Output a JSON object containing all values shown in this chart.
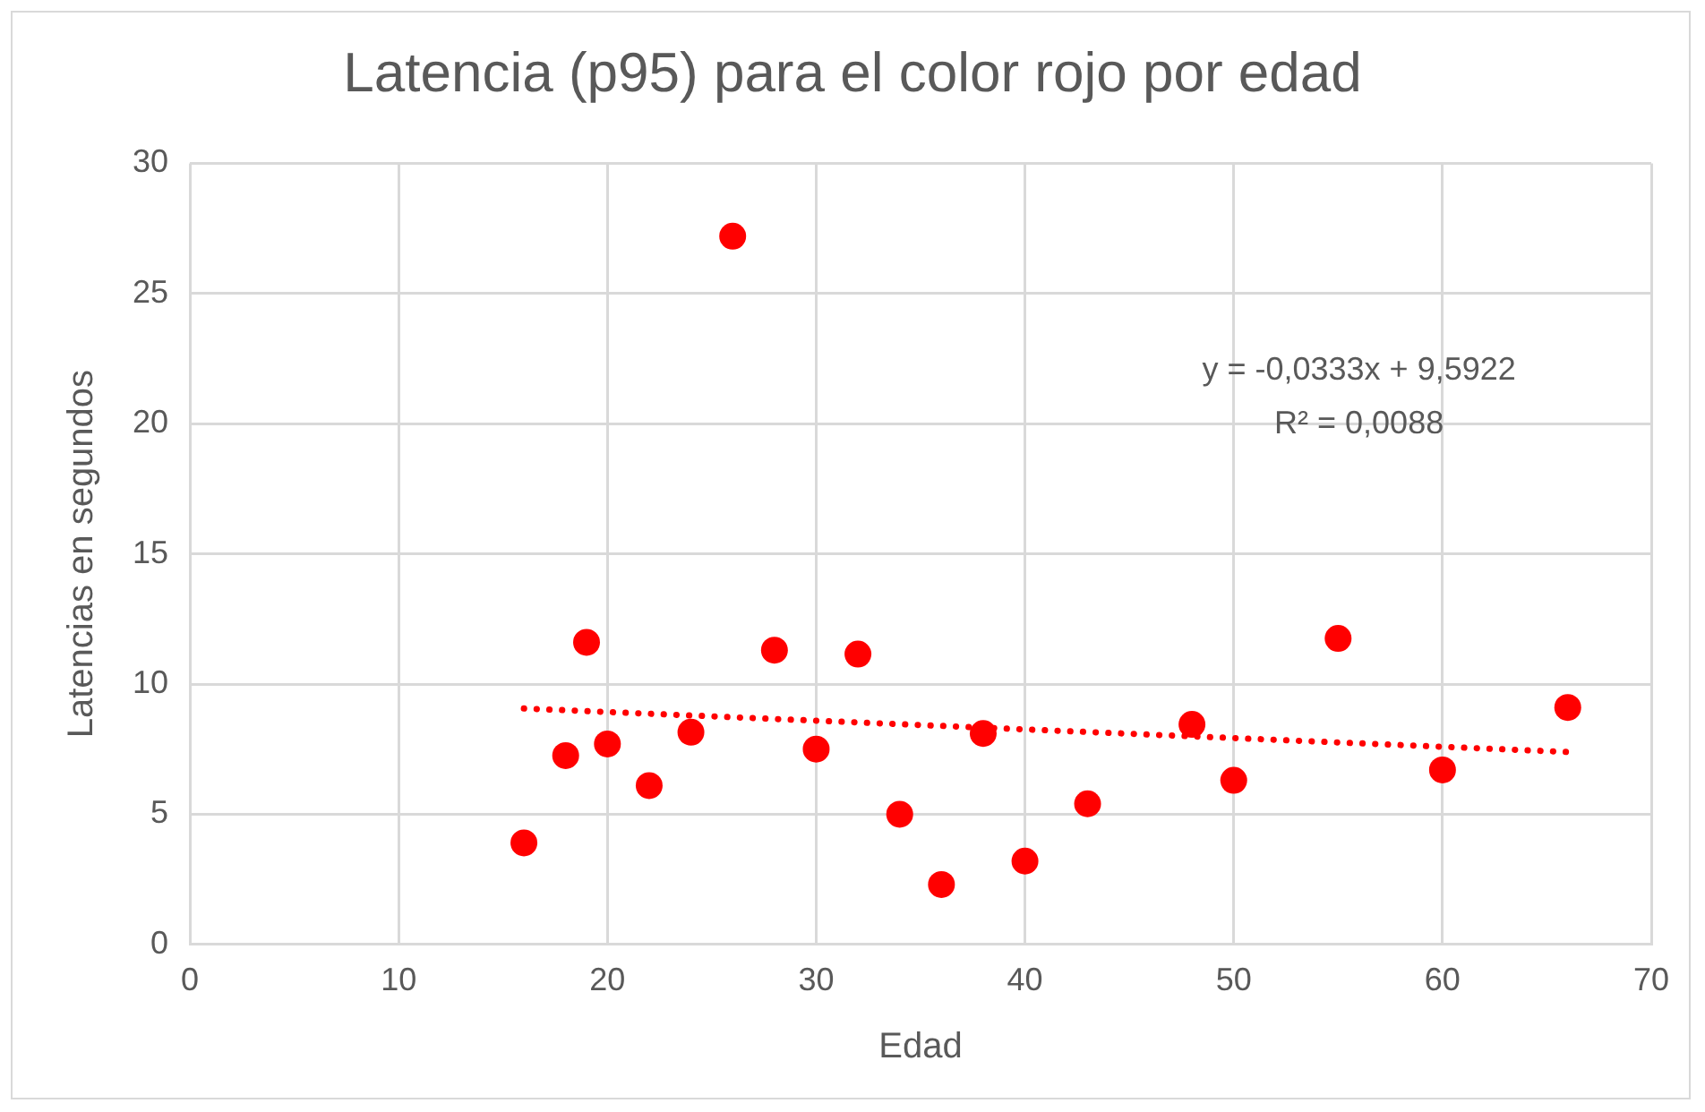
{
  "chart_data": {
    "type": "scatter",
    "title": "Latencia (p95) para el color rojo por edad",
    "xlabel": "Edad",
    "ylabel": "Latencias en segundos",
    "xlim": [
      0,
      70
    ],
    "xticks": [
      0,
      10,
      20,
      30,
      40,
      50,
      60,
      70
    ],
    "ylim": [
      0,
      30
    ],
    "yticks": [
      0,
      5,
      10,
      15,
      20,
      25,
      30
    ],
    "grid": true,
    "legend": false,
    "marker": "circle",
    "series": [
      {
        "type": "scatter",
        "color": "#ff0000",
        "x": [
          16,
          18,
          19,
          20,
          22,
          24,
          26,
          28,
          30,
          32,
          34,
          36,
          38,
          40,
          43,
          48,
          50,
          55,
          60,
          66
        ],
        "values": [
          3.9,
          7.25,
          11.6,
          7.7,
          6.1,
          8.15,
          27.2,
          11.3,
          7.5,
          11.15,
          5.0,
          2.3,
          8.1,
          3.2,
          5.4,
          8.45,
          6.3,
          11.75,
          6.7,
          9.1
        ]
      },
      {
        "type": "line",
        "color": "#ff0000",
        "line_style": "dotted",
        "marker": "none",
        "x": [
          16,
          66
        ],
        "values": [
          9.06,
          7.39
        ]
      }
    ],
    "annotations": [
      "y = -0,0333x + 9,5922",
      "R² = 0,0088"
    ]
  }
}
